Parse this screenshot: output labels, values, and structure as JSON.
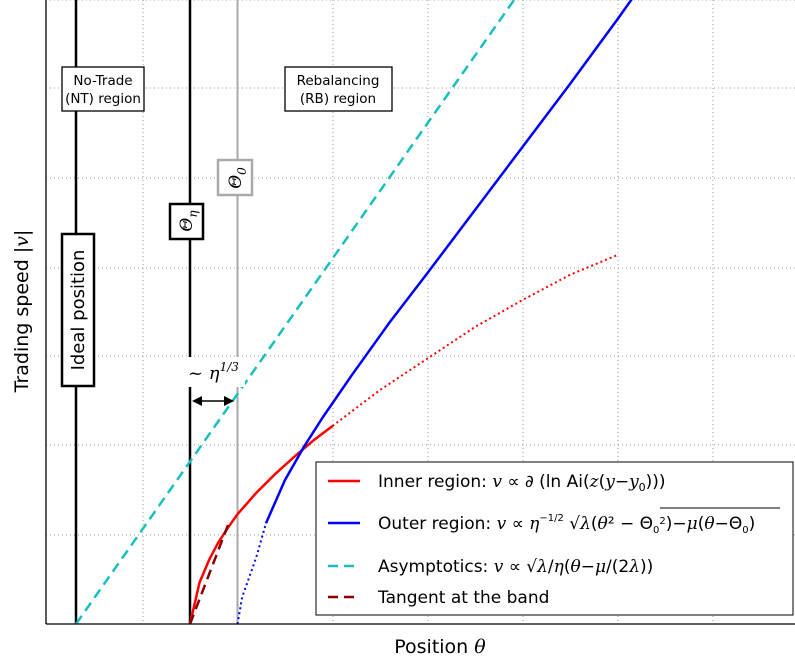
{
  "chart_data": {
    "type": "line",
    "xlabel": "Position θ",
    "ylabel": "Trading speed |v|",
    "grid": true,
    "legend_position": "lower-right",
    "axis_ticks_labeled": false,
    "region_labels": {
      "nt_line1": "No-Trade",
      "nt_line2": "(NT) region",
      "rb_line1": "Rebalancing",
      "rb_line2": "(RB) region"
    },
    "annotations": {
      "ideal_position": "Ideal position",
      "theta_eta": "Θη",
      "theta_0": "Θ0",
      "gap": "~ η1/3"
    },
    "legend": [
      {
        "label": "Inner region: v ∝ ∂ (ln Ai(z(y−y0)))",
        "color": "#ff0000",
        "style": "solid"
      },
      {
        "label": "Outer region: v ∝ η^(−1/2) √(λ(θ² − Θ0²) − μ(θ − Θ0))",
        "color": "#0000ff",
        "style": "solid"
      },
      {
        "label": "Asymptotics: v ∝ √(λ/η)(θ − μ/(2λ))",
        "color": "#19bfbf",
        "style": "dashed"
      },
      {
        "label": "Tangent at the band",
        "color": "#8b0000",
        "style": "dashed"
      }
    ],
    "xlim": [
      0,
      10
    ],
    "ylim": [
      0,
      10
    ],
    "vertical_lines": [
      {
        "name": "Ideal position",
        "x": 0.3,
        "color": "#000000"
      },
      {
        "name": "Θη",
        "x": 1.5,
        "color": "#000000"
      },
      {
        "name": "Θ0",
        "x": 2.0,
        "color": "#aaaaaa"
      }
    ],
    "series": [
      {
        "name": "Asymptotics",
        "color": "#19bfbf",
        "style": "dashed",
        "x": [
          0.3,
          6.95
        ],
        "y": [
          0,
          10
        ]
      },
      {
        "name": "Inner region",
        "color": "#ff0000",
        "style": "solid",
        "x": [
          1.5,
          1.6,
          1.7,
          1.8,
          1.9,
          2.0,
          2.2,
          2.4,
          2.6,
          2.8,
          3.0
        ],
        "y": [
          0,
          0.46,
          0.71,
          0.91,
          1.07,
          1.22,
          1.46,
          1.67,
          1.86,
          2.04,
          2.2
        ]
      },
      {
        "name": "Inner region (extension)",
        "color": "#ff0000",
        "style": "dotted",
        "x": [
          3.0,
          3.5,
          4.0,
          4.5,
          5.0,
          5.5,
          6.0
        ],
        "y": [
          2.2,
          2.6,
          2.95,
          3.3,
          3.6,
          3.88,
          4.1
        ]
      },
      {
        "name": "Outer region",
        "color": "#0000ff",
        "style": "solid",
        "x": [
          2.3,
          2.5,
          2.7,
          2.9,
          3.2,
          3.6,
          4.0,
          4.5,
          5.0,
          5.5,
          6.0,
          6.5,
          7.0,
          7.1
        ],
        "y": [
          1.12,
          1.6,
          1.97,
          2.3,
          2.76,
          3.35,
          3.9,
          4.6,
          5.3,
          6.0,
          6.72,
          7.46,
          8.22,
          8.4
        ]
      },
      {
        "name": "Outer region (extension)",
        "color": "#0000ff",
        "style": "dotted",
        "x": [
          2.0,
          2.05,
          2.1,
          2.15,
          2.2,
          2.3
        ],
        "y": [
          0,
          0.3,
          0.45,
          0.6,
          0.75,
          1.12
        ]
      },
      {
        "name": "Tangent at the band",
        "color": "#8b0000",
        "style": "dashed",
        "x": [
          1.5,
          1.9
        ],
        "y": [
          0,
          1.1
        ]
      }
    ]
  }
}
